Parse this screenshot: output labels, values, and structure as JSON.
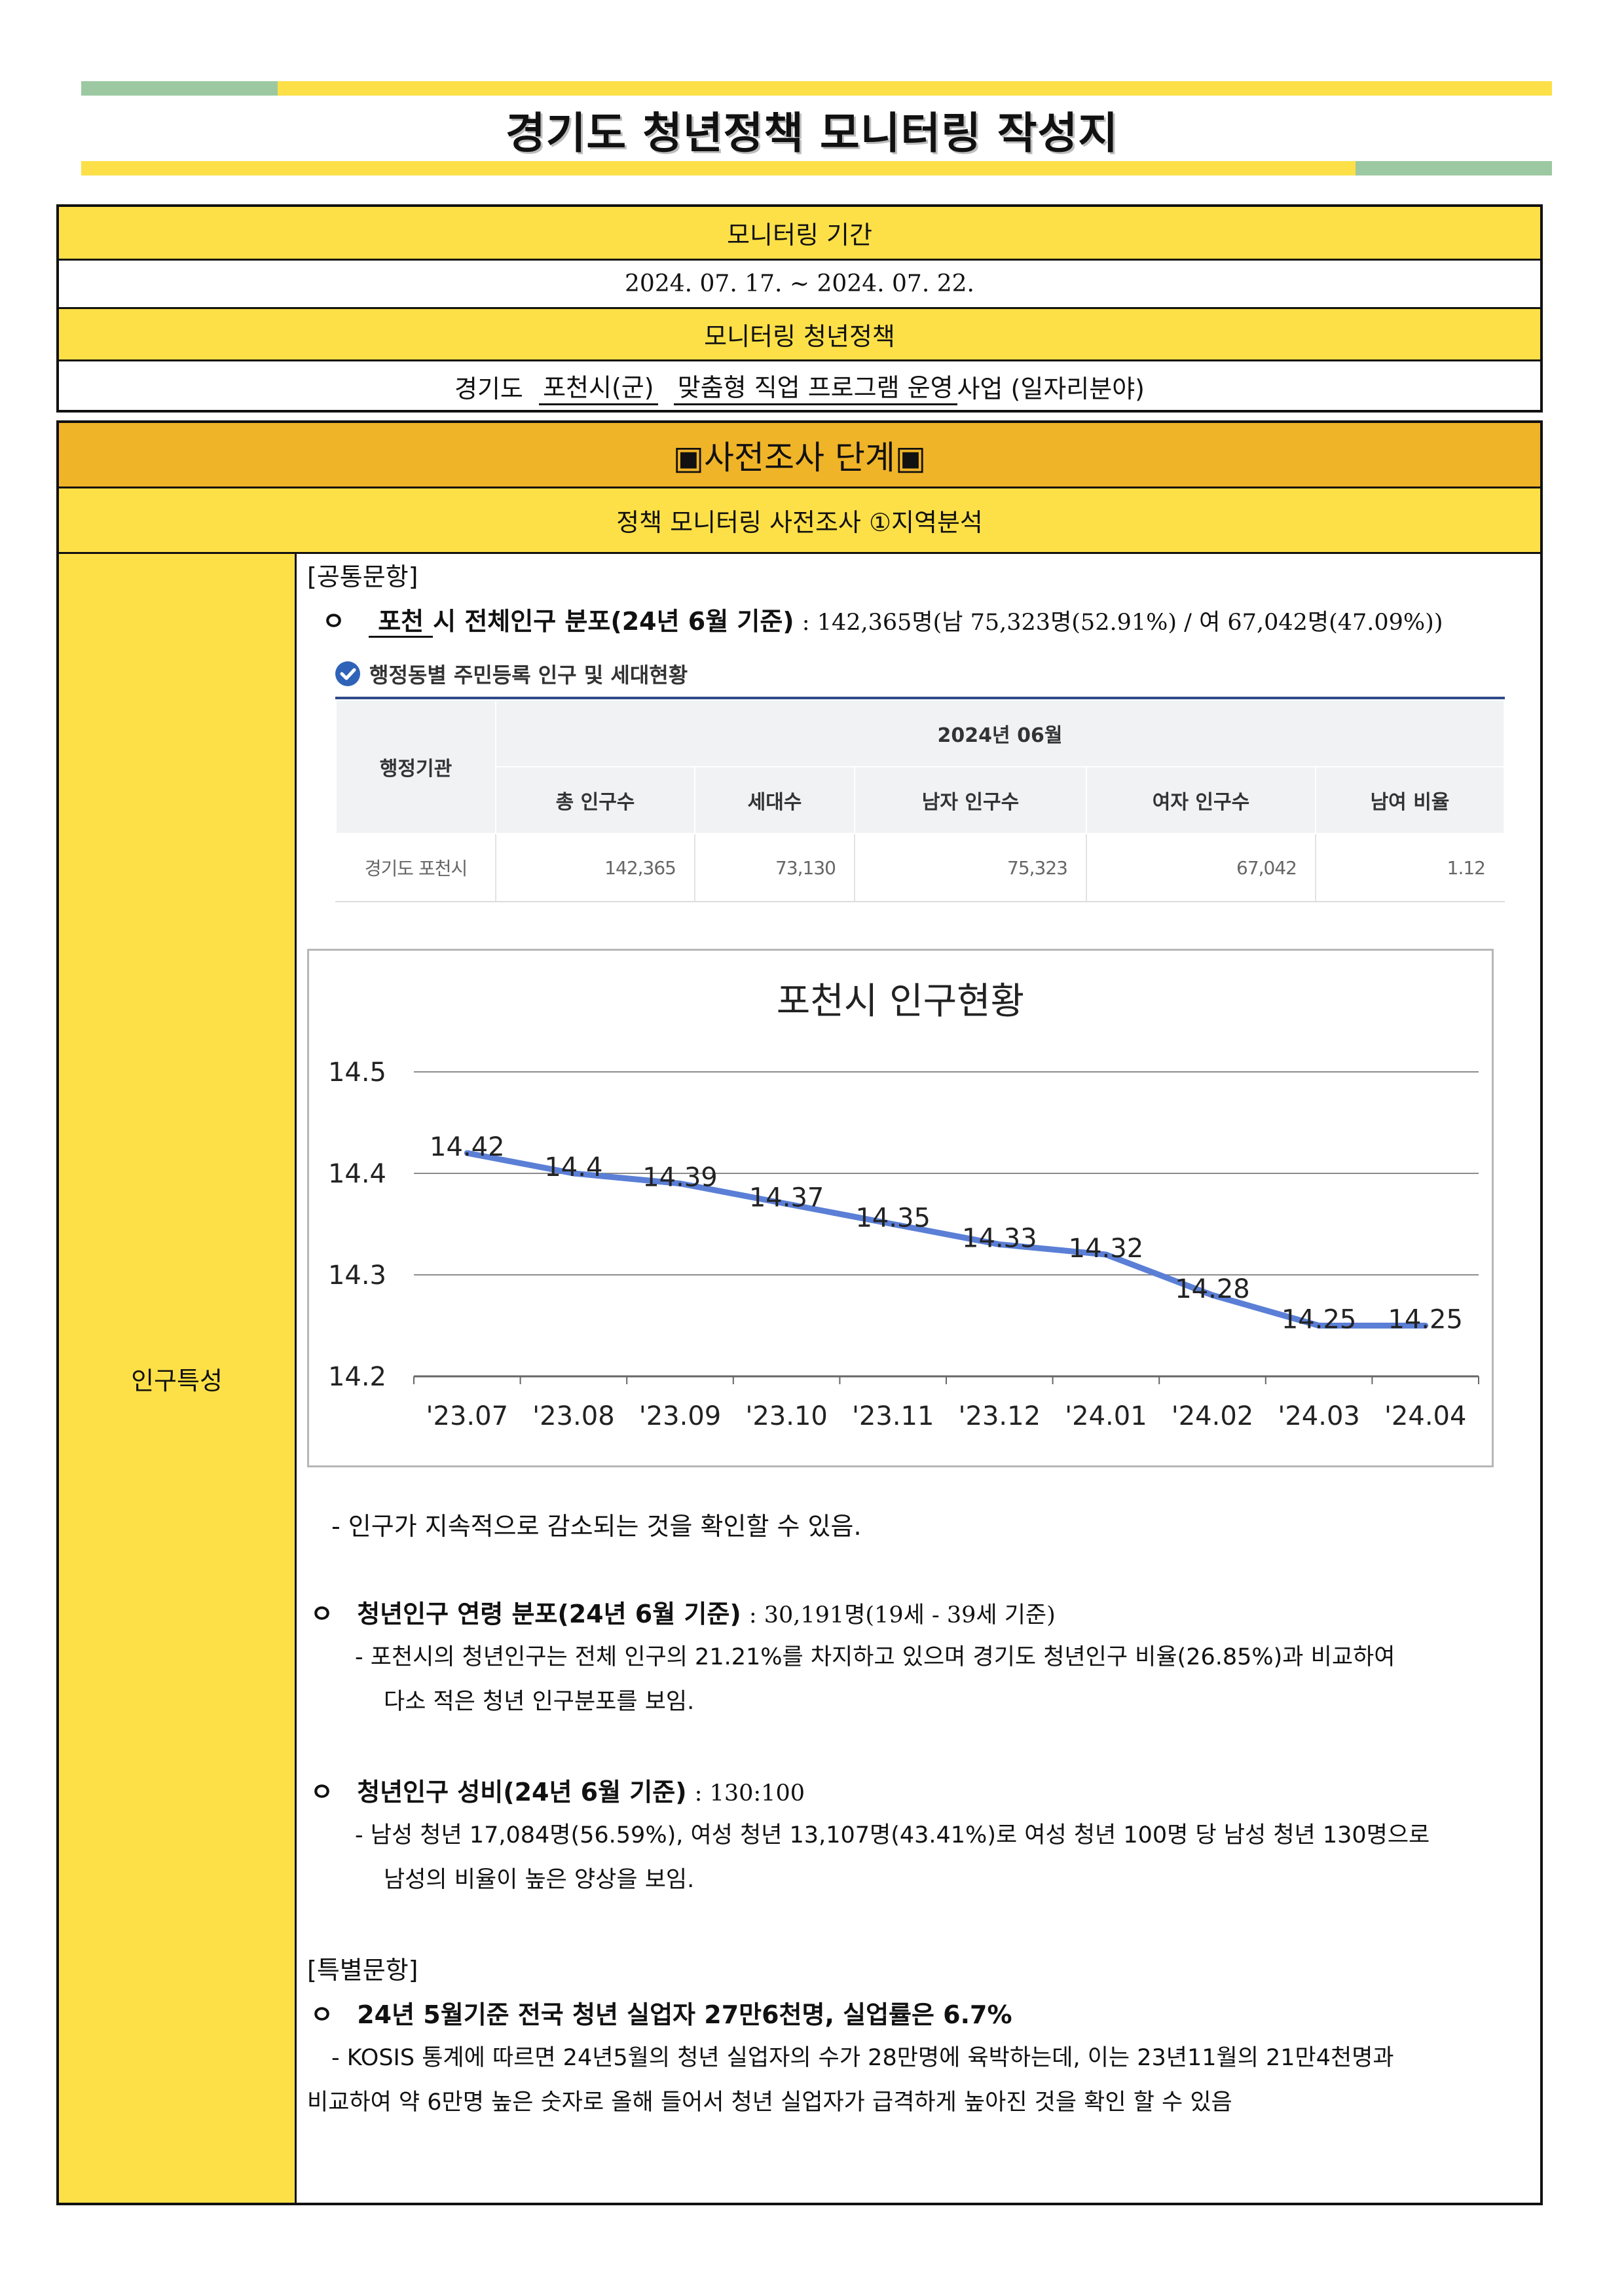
{
  "title": "경기도 청년정책 모니터링 작성지",
  "colors": {
    "accent_yellow": "#fde047",
    "accent_orange": "#f0b429",
    "accent_green": "#9cc9a1",
    "chart_line": "#5b7fd6"
  },
  "info": {
    "period_label": "모니터링 기간",
    "period_value": "2024. 07. 17. ~ 2024. 07. 22.",
    "policy_label": "모니터링 청년정책",
    "policy_prefix": "경기도",
    "policy_city": "포천시(군)",
    "policy_name": "맞춤형 직업 프로그램 운영",
    "policy_suffix": "사업 (일자리분야)"
  },
  "stage": {
    "title": "▣사전조사 단계▣",
    "subtitle": "정책 모니터링 사전조사 ①지역분석",
    "side_label": "인구특성"
  },
  "common": {
    "heading": "[공통문항]",
    "bullet": "ㅇ",
    "pop_city": "포천",
    "pop_label": "시 전체인구 분포(24년 6월 기준)",
    "pop_value": ": 142,365명(남 75,323명(52.91%) / 여 67,042명(47.09%))",
    "table_caption": "행정동별 주민등록 인구 및 세대현황",
    "table": {
      "org_header": "행정기관",
      "period_header": "2024년 06월",
      "columns": [
        "총 인구수",
        "세대수",
        "남자 인구수",
        "여자 인구수",
        "남여 비율"
      ],
      "row_label": "경기도 포천시",
      "values": [
        "142,365",
        "73,130",
        "75,323",
        "67,042",
        "1.12"
      ]
    },
    "trend_note": "- 인구가 지속적으로 감소되는 것을 확인할 수 있음.",
    "youth_dist_label": "청년인구 연령 분포(24년 6월 기준)",
    "youth_dist_value": ": 30,191명(19세 - 39세 기준)",
    "youth_dist_note1": "- 포천시의 청년인구는 전체 인구의 21.21%를 차지하고 있으며 경기도 청년인구 비율(26.85%)과 비교하여",
    "youth_dist_note2": "다소 적은 청년 인구분포를 보임.",
    "youth_sex_label": "청년인구 성비(24년 6월 기준)",
    "youth_sex_value": ": 130:100",
    "youth_sex_note1": "- 남성 청년 17,084명(56.59%), 여성 청년 13,107명(43.41%)로 여성 청년 100명 당 남성 청년 130명으로",
    "youth_sex_note2": "남성의 비율이 높은 양상을 보임."
  },
  "special": {
    "heading": "[특별문항]",
    "bullet_text": "24년 5월기준 전국 청년 실업자 27만6천명, 실업률은 6.7%",
    "note1": "- KOSIS 통계에 따르면 24년5월의 청년 실업자의 수가 28만명에 육박하는데, 이는 23년11월의 21만4천명과",
    "note2": "비교하여 약 6만명 높은 숫자로 올해 들어서 청년 실업자가 급격하게 높아진 것을 확인 할 수 있음"
  },
  "chart_data": {
    "type": "line",
    "title": "포천시 인구현황",
    "categories": [
      "'23.07",
      "'23.08",
      "'23.09",
      "'23.10",
      "'23.11",
      "'23.12",
      "'24.01",
      "'24.02",
      "'24.03",
      "'24.04"
    ],
    "values": [
      14.42,
      14.4,
      14.39,
      14.37,
      14.35,
      14.33,
      14.32,
      14.28,
      14.25,
      14.25
    ],
    "data_labels": [
      "14.42",
      "14.4",
      "14.39",
      "14.37",
      "14.35",
      "14.33",
      "14.32",
      "14.28",
      "14.25",
      "14.25"
    ],
    "yticks": [
      "14.2",
      "14.3",
      "14.4",
      "14.5"
    ],
    "ylim": [
      14.2,
      14.5
    ],
    "grid": true,
    "legend": "none"
  }
}
